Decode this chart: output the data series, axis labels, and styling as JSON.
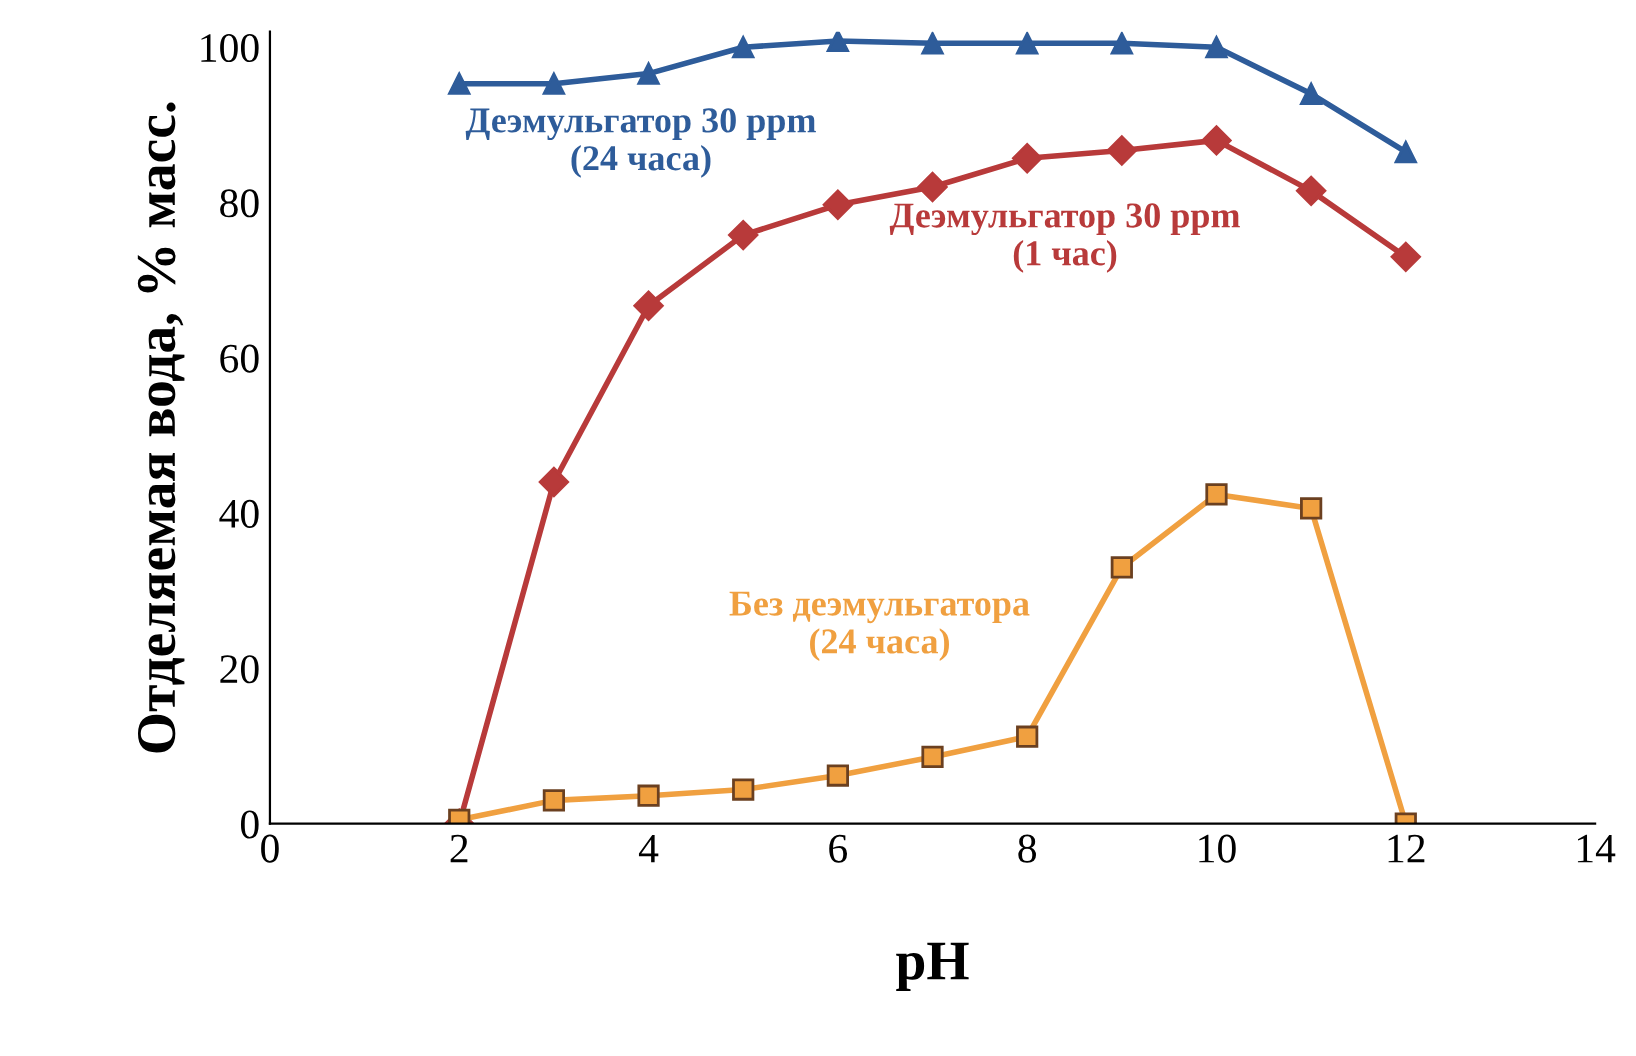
{
  "chart_data": {
    "type": "line",
    "xlabel": "pH",
    "ylabel": "Отделяемая вода, % масс.",
    "x": [
      2,
      3,
      4,
      5,
      6,
      7,
      8,
      9,
      10,
      11,
      12
    ],
    "series": [
      {
        "name": "Деэмульгатор 30 ppm\n(24 часа)",
        "color": "#2e5c9a",
        "marker": "triangle",
        "values": [
          95.3,
          95.3,
          96.6,
          100,
          100.8,
          100.5,
          100.5,
          100.5,
          100,
          94,
          86.5
        ]
      },
      {
        "name": "Деэмульгатор 30 ppm\n(1 час)",
        "color": "#b83a3a",
        "marker": "diamond",
        "values": [
          0,
          44,
          66.7,
          75.8,
          79.7,
          82,
          85.7,
          86.7,
          88,
          81.5,
          73
        ]
      },
      {
        "name": "Без деэмульгатора\n(24 часа)",
        "color": "#f0a040",
        "marker": "square",
        "values": [
          0.5,
          3,
          3.6,
          4.4,
          6.2,
          8.6,
          11.2,
          33,
          42.4,
          40.6,
          0
        ]
      }
    ],
    "xlim": [
      0,
      14
    ],
    "xticks": [
      0,
      2,
      4,
      6,
      8,
      10,
      12,
      14
    ],
    "ylim": [
      0,
      102
    ],
    "yticks": [
      0,
      20,
      40,
      60,
      80,
      100
    ],
    "grid": false,
    "legend": false
  }
}
